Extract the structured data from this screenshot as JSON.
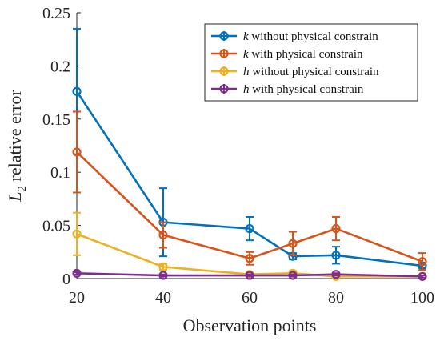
{
  "chart_data": {
    "type": "line",
    "xlabel": "Observation points",
    "ylabel_main": "L",
    "ylabel_sub": "2",
    "ylabel_rest": " relative error",
    "xlim": [
      20,
      100
    ],
    "ylim": [
      0,
      0.25
    ],
    "x_ticks": [
      20,
      40,
      60,
      80,
      100
    ],
    "x_tick_labels": [
      "20",
      "40",
      "60",
      "80",
      "100"
    ],
    "y_ticks": [
      0,
      0.05,
      0.1,
      0.15,
      0.2,
      0.25
    ],
    "y_tick_labels": [
      "0",
      "0.05",
      "0.1",
      "0.15",
      "0.2",
      "0.25"
    ],
    "grid": false,
    "legend_position": "top-right",
    "series": [
      {
        "var": "k",
        "rest": " without physical constrain",
        "color": "#0072BD",
        "x": [
          20,
          40,
          60,
          70,
          80,
          100
        ],
        "y": [
          0.176,
          0.053,
          0.047,
          0.021,
          0.022,
          0.012
        ],
        "err": [
          0.059,
          0.032,
          0.011,
          0.003,
          0.008,
          0.002
        ]
      },
      {
        "var": "k",
        "rest": " with physical constrain",
        "color": "#D95319",
        "x": [
          20,
          40,
          60,
          70,
          80,
          100
        ],
        "y": [
          0.119,
          0.041,
          0.019,
          0.033,
          0.047,
          0.016
        ],
        "err": [
          0.038,
          0.012,
          0.006,
          0.011,
          0.011,
          0.008
        ]
      },
      {
        "var": "h",
        "rest": " without physical constrain",
        "color": "#EDB120",
        "x": [
          20,
          40,
          60,
          70,
          80,
          100
        ],
        "y": [
          0.042,
          0.011,
          0.004,
          0.005,
          0.002,
          0.002
        ],
        "err": [
          0.02,
          0.003,
          0.001,
          0.002,
          0.001,
          0.001
        ]
      },
      {
        "var": "h",
        "rest": " with physical constrain",
        "color": "#7E2F8E",
        "x": [
          20,
          40,
          60,
          70,
          80,
          100
        ],
        "y": [
          0.005,
          0.003,
          0.003,
          0.003,
          0.004,
          0.002
        ],
        "err": [
          0.001,
          0.001,
          0.001,
          0.001,
          0.001,
          0.001
        ]
      }
    ]
  }
}
